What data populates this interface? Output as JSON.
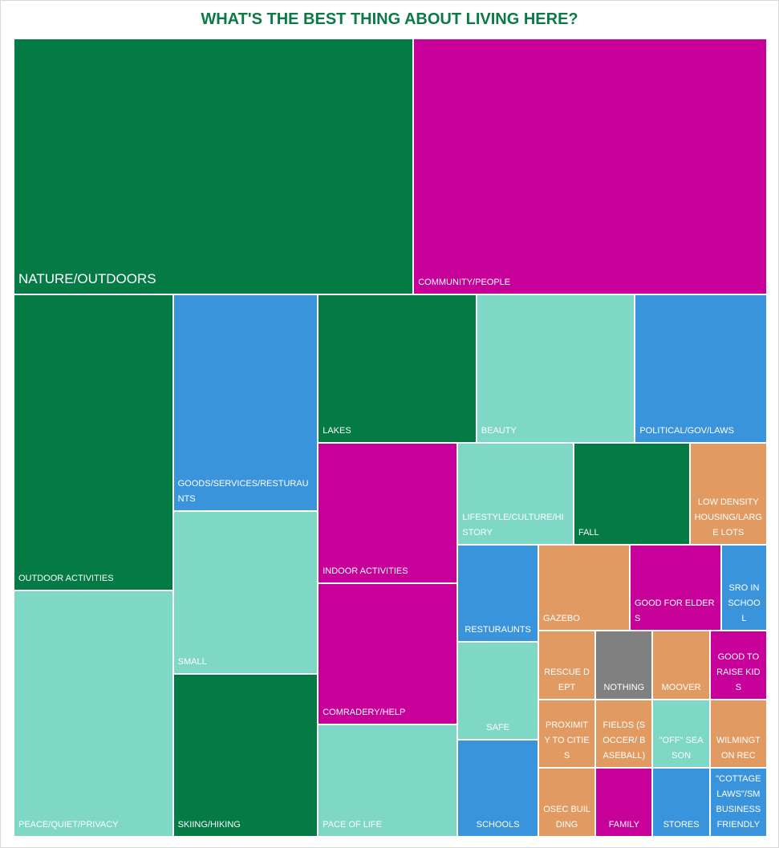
{
  "chart_data": {
    "type": "treemap",
    "title": "WHAT'S THE BEST THING ABOUT LIVING HERE?",
    "categories": [
      "NATURE/OUTDOORS",
      "COMMUNITY/PEOPLE",
      "OUTDOOR ACTIVITIES",
      "PEACE/QUIET/PRIVACY",
      "GOODS/SERVICES/RESTURAUNTS",
      "SMALL",
      "SKIING/HIKING",
      "LAKES",
      "BEAUTY",
      "POLITICAL/GOV/LAWS",
      "INDOOR ACTIVITIES",
      "COMRADERY/HELP",
      "PACE OF LIFE",
      "LIFESTYLE/CULTURE/HISTORY",
      "FALL",
      "LOW DENSITY HOUSING/LARGE LOTS",
      "RESTURAUNTS",
      "SAFE",
      "SCHOOLS",
      "GAZEBO",
      "GOOD FOR ELDERS",
      "SRO IN SCHOOL",
      "RESCUE DEPT",
      "NOTHING",
      "MOOVER",
      "GOOD TO RAISE KIDS",
      "PROXIMITY TO CITIES",
      "FIELDS (SOCCER/ BASEBALL)",
      "\"OFF\" SEASON",
      "WILMINGTON REC",
      "OSEC BUILDING",
      "FAMILY",
      "STORES",
      "\"COTTAGE LAWS\"/SM BUSINESS FRIENDLY"
    ],
    "values": [
      26,
      23,
      12,
      10,
      8,
      6,
      6,
      6,
      6,
      5,
      5,
      5,
      4,
      3,
      3,
      2,
      2,
      2,
      2,
      2,
      2,
      1,
      1,
      1,
      1,
      1,
      1,
      1,
      1,
      1,
      1,
      1,
      1,
      1
    ],
    "colors": [
      "#047a45",
      "#c8009a",
      "#047a45",
      "#7fd7c6",
      "#3a94dc",
      "#7fd7c6",
      "#047a45",
      "#047a45",
      "#7fd7c6",
      "#3a94dc",
      "#c8009a",
      "#c8009a",
      "#7fd7c6",
      "#7fd7c6",
      "#047a45",
      "#e09a62",
      "#3a94dc",
      "#7fd7c6",
      "#3a94dc",
      "#e09a62",
      "#c8009a",
      "#3a94dc",
      "#e09a62",
      "#808080",
      "#e09a62",
      "#c8009a",
      "#e09a62",
      "#e09a62",
      "#7fd7c6",
      "#e09a62",
      "#e09a62",
      "#c8009a",
      "#3a94dc",
      "#3a94dc"
    ]
  }
}
